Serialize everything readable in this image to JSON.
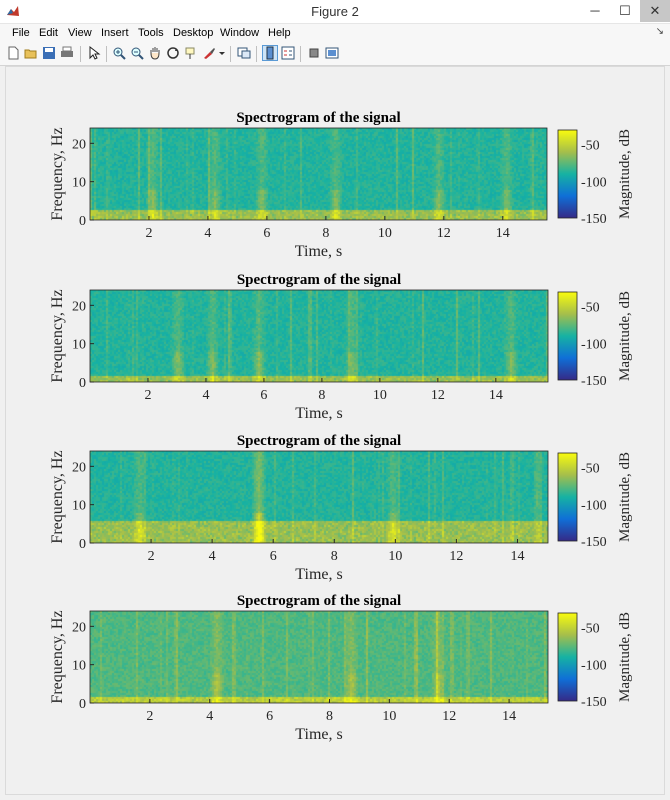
{
  "window": {
    "title": "Figure 2",
    "minimize": "─",
    "maximize": "☐",
    "close": "✕"
  },
  "menu": [
    "File",
    "Edit",
    "View",
    "Insert",
    "Tools",
    "Desktop",
    "Window",
    "Help"
  ],
  "toolbar_icons": [
    "new-figure-icon",
    "open-icon",
    "save-icon",
    "print-icon",
    "pointer-icon",
    "zoom-in-icon",
    "zoom-out-icon",
    "pan-icon",
    "rotate-icon",
    "data-cursor-icon",
    "brush-icon",
    "dropdown-arrow-icon",
    "link-plot-icon",
    "colorbar-icon",
    "legend-icon",
    "hide-plot-tools-icon",
    "show-plot-tools-icon"
  ],
  "colors": {
    "low": "#3d26a8",
    "mid": "#16b0a6",
    "high": "#f9d12e",
    "accent": "#4a4a4a"
  },
  "plots": [
    {
      "title": "Spectrogram of the signal",
      "xlabel": "Time, s",
      "ylabel": "Frequency, Hz",
      "yticks": [
        "0",
        "10",
        "20"
      ],
      "xticks": [
        "2",
        "4",
        "6",
        "8",
        "10",
        "12",
        "14"
      ],
      "colorbar_label": "Magnitude, dB",
      "colorbar_ticks": [
        "-50",
        "-100",
        "-150"
      ]
    },
    {
      "title": "Spectrogram of the signal",
      "xlabel": "Time, s",
      "ylabel": "Frequency, Hz",
      "yticks": [
        "0",
        "10",
        "20"
      ],
      "xticks": [
        "2",
        "4",
        "6",
        "8",
        "10",
        "12",
        "14"
      ],
      "colorbar_label": "Magnitude, dB",
      "colorbar_ticks": [
        "-50",
        "-100",
        "-150"
      ]
    },
    {
      "title": "Spectrogram of the signal",
      "xlabel": "Time, s",
      "ylabel": "Frequency, Hz",
      "yticks": [
        "0",
        "10",
        "20"
      ],
      "xticks": [
        "2",
        "4",
        "6",
        "8",
        "10",
        "12",
        "14"
      ],
      "colorbar_label": "Magnitude, dB",
      "colorbar_ticks": [
        "-50",
        "-100",
        "-150"
      ]
    },
    {
      "title": "Spectrogram of the signal",
      "xlabel": "Time, s",
      "ylabel": "Frequency, Hz",
      "yticks": [
        "0",
        "10",
        "20"
      ],
      "xticks": [
        "2",
        "4",
        "6",
        "8",
        "10",
        "12",
        "14"
      ],
      "colorbar_label": "Magnitude, dB",
      "colorbar_ticks": [
        "-50",
        "-100",
        "-150"
      ]
    }
  ],
  "chart_data": [
    {
      "type": "heatmap",
      "title": "Spectrogram of the signal",
      "xlabel": "Time, s",
      "ylabel": "Frequency, Hz",
      "xlim": [
        0,
        15.5
      ],
      "ylim": [
        0,
        24
      ],
      "clim": [
        -150,
        -30
      ],
      "colorbar_label": "Magnitude, dB",
      "low_band_hz": 3,
      "bright_times_s": [
        2.1,
        4.2,
        5.8,
        8.3,
        11.8,
        14.1
      ]
    },
    {
      "type": "heatmap",
      "title": "Spectrogram of the signal",
      "xlabel": "Time, s",
      "ylabel": "Frequency, Hz",
      "xlim": [
        0,
        15.8
      ],
      "ylim": [
        0,
        24
      ],
      "clim": [
        -150,
        -30
      ],
      "colorbar_label": "Magnitude, dB",
      "low_band_hz": 2,
      "bright_times_s": [
        3.0,
        4.2,
        5.8,
        9.0,
        14.5
      ]
    },
    {
      "type": "heatmap",
      "title": "Spectrogram of the signal",
      "xlabel": "Time, s",
      "ylabel": "Frequency, Hz",
      "xlim": [
        0,
        15
      ],
      "ylim": [
        0,
        24
      ],
      "clim": [
        -150,
        -30
      ],
      "colorbar_label": "Magnitude, dB",
      "low_band_hz": 6,
      "bright_times_s": [
        1.6,
        5.5,
        9.9
      ]
    },
    {
      "type": "heatmap",
      "title": "Spectrogram of the signal",
      "xlabel": "Time, s",
      "ylabel": "Frequency, Hz",
      "xlim": [
        0,
        15.3
      ],
      "ylim": [
        0,
        24
      ],
      "clim": [
        -150,
        -30
      ],
      "colorbar_label": "Magnitude, dB",
      "low_band_hz": 2,
      "bright_times_s": [
        4.2,
        8.7,
        11.6
      ]
    }
  ]
}
